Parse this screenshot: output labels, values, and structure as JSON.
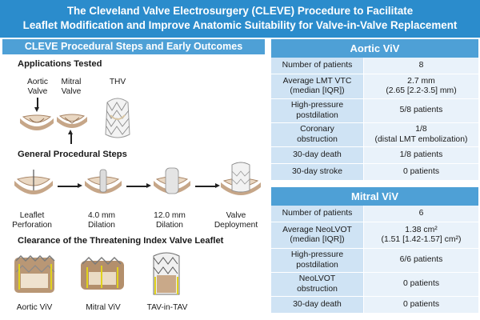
{
  "banner": {
    "line1": "The Cleveland Valve Electrosurgery (CLEVE) Procedure to Facilitate",
    "line2": "Leaflet Modification and Improve Anatomic Suitability for Valve-in-Valve Replacement"
  },
  "left_panel": {
    "header": "CLEVE Procedural Steps and Early Outcomes",
    "applications": {
      "title": "Applications Tested",
      "items": [
        {
          "line1": "Aortic",
          "line2": "Valve"
        },
        {
          "line1": "Mitral",
          "line2": "Valve"
        },
        {
          "line1": "THV",
          "line2": ""
        }
      ]
    },
    "steps": {
      "title": "General Procedural Steps",
      "items": [
        {
          "line1": "Leaflet",
          "line2": "Perforation"
        },
        {
          "line1": "4.0 mm",
          "line2": "Dilation"
        },
        {
          "line1": "12.0 mm",
          "line2": "Dilation"
        },
        {
          "line1": "Valve",
          "line2": "Deployment"
        }
      ]
    },
    "clearance": {
      "title": "Clearance of the Threatening Index Valve Leaflet",
      "items": [
        "Aortic ViV",
        "Mitral ViV",
        "TAV-in-TAV"
      ]
    }
  },
  "aortic": {
    "header": "Aortic ViV",
    "rows": [
      {
        "key": [
          "Number of patients"
        ],
        "value": [
          "8"
        ]
      },
      {
        "key": [
          "Average LMT VTC",
          "(median [IQR])"
        ],
        "value": [
          "2.7 mm",
          "(2.65 [2.2-3.5] mm)"
        ]
      },
      {
        "key": [
          "High-pressure",
          "postdilation"
        ],
        "value": [
          "5/8 patients"
        ]
      },
      {
        "key": [
          "Coronary",
          "obstruction"
        ],
        "value": [
          "1/8",
          "(distal LMT embolization)"
        ]
      },
      {
        "key": [
          "30-day death"
        ],
        "value": [
          "1/8 patients"
        ]
      },
      {
        "key": [
          "30-day stroke"
        ],
        "value": [
          "0 patients"
        ]
      }
    ]
  },
  "mitral": {
    "header": "Mitral ViV",
    "rows": [
      {
        "key": [
          "Number of patients"
        ],
        "value": [
          "6"
        ]
      },
      {
        "key": [
          "Average NeoLVOT",
          "(median [IQR])"
        ],
        "value": [
          "1.38 cm²",
          "(1.51 [1.42-1.57] cm²)"
        ]
      },
      {
        "key": [
          "High-pressure",
          "postdilation"
        ],
        "value": [
          "6/6 patients"
        ]
      },
      {
        "key": [
          "NeoLVOT",
          "obstruction"
        ],
        "value": [
          "0 patients"
        ]
      },
      {
        "key": [
          "30-day death"
        ],
        "value": [
          "0 patients"
        ]
      }
    ]
  }
}
